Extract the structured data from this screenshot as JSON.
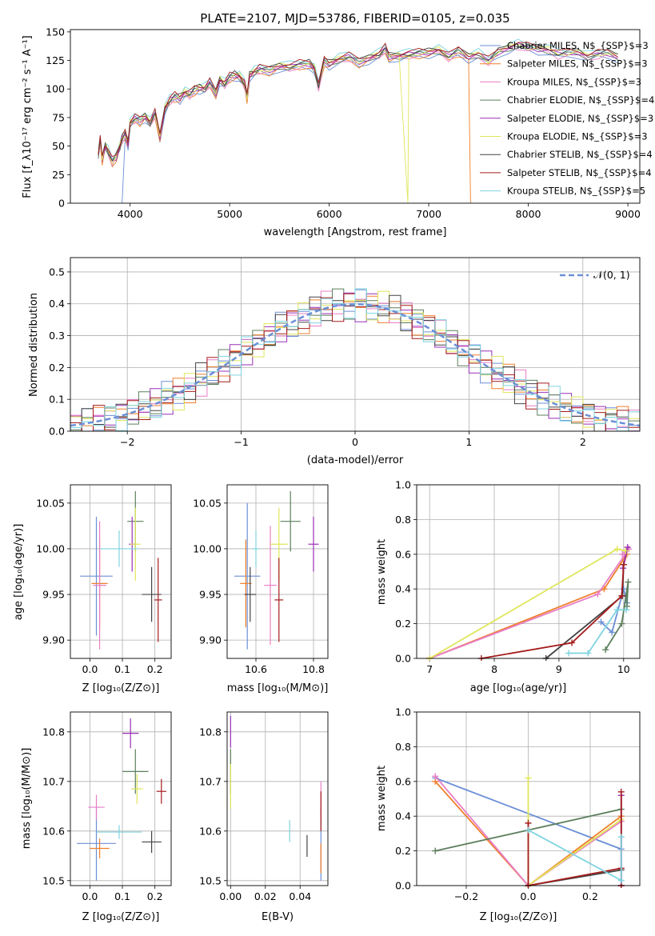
{
  "colors": [
    "#6b8fd6",
    "#ef7f2b",
    "#e87ec6",
    "#5c7f5c",
    "#9b2fb8",
    "#dfe65a",
    "#444444",
    "#a51c1c",
    "#7fd4e0"
  ],
  "chart_data": [
    {
      "id": "spectrum",
      "type": "line",
      "title": "PLATE=2107, MJD=53786, FIBERID=0105, z=0.035",
      "xlabel": "wavelength [Angstrom, rest frame]",
      "ylabel": "Flux [f_λ10⁻¹⁷ erg cm⁻² s⁻¹ A⁻¹]",
      "xlim": [
        3400,
        9120
      ],
      "ylim": [
        0,
        152
      ],
      "xticks": [
        4000,
        5000,
        6000,
        7000,
        8000,
        9000
      ],
      "yticks": [
        0,
        25,
        50,
        75,
        100,
        125,
        150
      ],
      "legend_position": "top-right",
      "x": [
        3680,
        3700,
        3720,
        3750,
        3780,
        3820,
        3860,
        3900,
        3920,
        3950,
        3980,
        4000,
        4050,
        4100,
        4150,
        4200,
        4250,
        4300,
        4350,
        4400,
        4450,
        4500,
        4550,
        4600,
        4650,
        4700,
        4750,
        4800,
        4861,
        4900,
        4950,
        5000,
        5050,
        5100,
        5150,
        5175,
        5200,
        5250,
        5300,
        5400,
        5500,
        5600,
        5700,
        5800,
        5850,
        5893,
        5950,
        6000,
        6100,
        6200,
        6300,
        6400,
        6500,
        6563,
        6600,
        6700,
        6800,
        6900,
        7000,
        7100,
        7200,
        7300,
        7400,
        7500,
        7600,
        7700,
        7800,
        7900,
        8000,
        8100,
        8200,
        8300,
        8400,
        8500,
        8600,
        8700,
        8800,
        8900
      ],
      "flux": [
        42,
        55,
        38,
        50,
        45,
        36,
        40,
        50,
        56,
        60,
        52,
        70,
        74,
        72,
        76,
        70,
        78,
        58,
        83,
        90,
        93,
        92,
        97,
        95,
        99,
        101,
        100,
        105,
        96,
        108,
        104,
        110,
        112,
        111,
        104,
        92,
        112,
        115,
        117,
        116,
        120,
        119,
        121,
        122,
        118,
        102,
        124,
        122,
        126,
        128,
        123,
        127,
        130,
        135,
        128,
        129,
        130,
        131,
        132,
        134,
        128,
        133,
        128,
        130,
        124,
        132,
        136,
        138,
        136,
        135,
        134,
        130,
        131,
        132,
        128,
        130,
        131,
        128
      ],
      "series": [
        {
          "name": "Chabrier MILES, N$_{SSP}$=3"
        },
        {
          "name": "Salpeter MILES, N$_{SSP}$=3"
        },
        {
          "name": "Kroupa MILES, N$_{SSP}$=3"
        },
        {
          "name": "Chabrier ELODIE, N$_{SSP}$=4"
        },
        {
          "name": "Salpeter ELODIE, N$_{SSP}$=3"
        },
        {
          "name": "Kroupa ELODIE, N$_{SSP}$=3"
        },
        {
          "name": "Chabrier STELIB, N$_{SSP}$=4"
        },
        {
          "name": "Salpeter STELIB, N$_{SSP}$=4"
        },
        {
          "name": "Kroupa STELIB, N$_{SSP}$=5"
        }
      ]
    },
    {
      "id": "residuals",
      "type": "histogram",
      "xlabel": "(data-model)/error",
      "ylabel": "Normed distribution",
      "xlim": [
        -2.5,
        2.5
      ],
      "ylim": [
        0,
        0.545
      ],
      "xticks": [
        -2,
        -1,
        0,
        1,
        2
      ],
      "yticks": [
        0.0,
        0.1,
        0.2,
        0.3,
        0.4,
        0.5
      ],
      "legend": "𝒩(0, 1)",
      "legend_position": "top-right"
    },
    {
      "id": "age_vs_Z",
      "type": "errorbar",
      "xlabel": "Z [log₁₀(Z/Z⊙)]",
      "ylabel": "age  [log₁₀(age/yr)]",
      "xlim": [
        -0.06,
        0.25
      ],
      "ylim": [
        9.88,
        10.07
      ],
      "xticks": [
        0.0,
        0.1,
        0.2
      ],
      "yticks": [
        9.9,
        9.95,
        10.0,
        10.05
      ],
      "points": [
        {
          "x": 0.02,
          "y": 9.97,
          "xerr": 0.05,
          "yerr": 0.065
        },
        {
          "x": 0.03,
          "y": 9.962,
          "xerr": 0.025,
          "yerr": 0.048
        },
        {
          "x": 0.03,
          "y": 9.96,
          "xerr": 0.02,
          "yerr": 0.07
        },
        {
          "x": 0.14,
          "y": 10.03,
          "xerr": 0.025,
          "yerr": 0.033
        },
        {
          "x": 0.13,
          "y": 10.005,
          "xerr": 0.01,
          "yerr": 0.03
        },
        {
          "x": 0.14,
          "y": 10.005,
          "xerr": 0.016,
          "yerr": 0.04
        },
        {
          "x": 0.19,
          "y": 9.95,
          "xerr": 0.03,
          "yerr": 0.03
        },
        {
          "x": 0.21,
          "y": 9.944,
          "xerr": 0.012,
          "yerr": 0.046
        },
        {
          "x": 0.09,
          "y": 10.0,
          "xerr": 0.06,
          "yerr": 0.02
        }
      ]
    },
    {
      "id": "age_vs_mass",
      "type": "errorbar",
      "xlabel": "mass [log₁₀(M/M⊙)]",
      "ylabel": "",
      "xlim": [
        10.5,
        10.85
      ],
      "ylim": [
        9.88,
        10.07
      ],
      "xticks": [
        10.6,
        10.8
      ],
      "yticks": [
        9.9,
        9.95,
        10.0,
        10.05
      ],
      "points": [
        {
          "x": 10.57,
          "y": 9.97,
          "xerr": 0.045,
          "yerr": 0.08
        },
        {
          "x": 10.565,
          "y": 9.962,
          "xerr": 0.02,
          "yerr": 0.048
        },
        {
          "x": 10.65,
          "y": 9.96,
          "xerr": 0.022,
          "yerr": 0.065
        },
        {
          "x": 10.72,
          "y": 10.03,
          "xerr": 0.035,
          "yerr": 0.033
        },
        {
          "x": 10.8,
          "y": 10.005,
          "xerr": 0.018,
          "yerr": 0.03
        },
        {
          "x": 10.68,
          "y": 10.005,
          "xerr": 0.03,
          "yerr": 0.04
        },
        {
          "x": 10.58,
          "y": 9.95,
          "xerr": 0.02,
          "yerr": 0.03
        },
        {
          "x": 10.68,
          "y": 9.944,
          "xerr": 0.015,
          "yerr": 0.046
        },
        {
          "x": 10.6,
          "y": 10.0,
          "xerr": 0.012,
          "yerr": 0.02
        }
      ]
    },
    {
      "id": "massweight_vs_age",
      "type": "line",
      "xlabel": "age  [log₁₀(age/yr)]",
      "ylabel": "mass weight",
      "xlim": [
        6.8,
        10.25
      ],
      "ylim": [
        0,
        1.0
      ],
      "xticks": [
        7,
        8,
        9,
        10
      ],
      "yticks": [
        0.0,
        0.2,
        0.4,
        0.6,
        0.8,
        1.0
      ],
      "series": [
        {
          "x": [
            9.65,
            9.82,
            10.0,
            10.05
          ],
          "y": [
            0.21,
            0.15,
            0.4,
            0.32
          ]
        },
        {
          "x": [
            7.0,
            9.7,
            10.05,
            10.0
          ],
          "y": [
            0.0,
            0.4,
            0.6,
            0.54
          ]
        },
        {
          "x": [
            7.0,
            9.6,
            10.08,
            9.98
          ],
          "y": [
            0.0,
            0.37,
            0.63,
            0.6
          ]
        },
        {
          "x": [
            9.72,
            9.97,
            10.07,
            10.05
          ],
          "y": [
            0.05,
            0.2,
            0.44,
            0.3
          ]
        },
        {
          "x": [
            9.99,
            10.06
          ],
          "y": [
            0.52,
            0.64
          ]
        },
        {
          "x": [
            7.0,
            9.9,
            10.03
          ],
          "y": [
            0.0,
            0.63,
            0.62
          ]
        },
        {
          "x": [
            8.8,
            9.98,
            10.0
          ],
          "y": [
            0.0,
            0.36,
            0.54
          ]
        },
        {
          "x": [
            7.8,
            9.2,
            9.97,
            10.0
          ],
          "y": [
            0.0,
            0.09,
            0.36,
            0.54
          ]
        },
        {
          "x": [
            9.15,
            9.45,
            9.9,
            10.04
          ],
          "y": [
            0.03,
            0.03,
            0.28,
            0.28
          ]
        }
      ]
    },
    {
      "id": "mass_vs_Z",
      "type": "errorbar",
      "xlabel": "Z [log₁₀(Z/Z⊙)]",
      "ylabel": "mass [log₁₀(M/M⊙)]",
      "xlim": [
        -0.06,
        0.25
      ],
      "ylim": [
        10.49,
        10.84
      ],
      "xticks": [
        0.0,
        0.1,
        0.2
      ],
      "yticks": [
        10.5,
        10.6,
        10.7,
        10.8
      ],
      "points": [
        {
          "x": 0.02,
          "y": 10.575,
          "xerr": 0.06,
          "yerr": 0.075
        },
        {
          "x": 0.03,
          "y": 10.565,
          "xerr": 0.03,
          "yerr": 0.02
        },
        {
          "x": 0.02,
          "y": 10.648,
          "xerr": 0.025,
          "yerr": 0.025
        },
        {
          "x": 0.14,
          "y": 10.72,
          "xerr": 0.04,
          "yerr": 0.045
        },
        {
          "x": 0.125,
          "y": 10.797,
          "xerr": 0.025,
          "yerr": 0.03
        },
        {
          "x": 0.145,
          "y": 10.685,
          "xerr": 0.018,
          "yerr": 0.03
        },
        {
          "x": 0.19,
          "y": 10.578,
          "xerr": 0.03,
          "yerr": 0.022
        },
        {
          "x": 0.22,
          "y": 10.68,
          "xerr": 0.015,
          "yerr": 0.025
        },
        {
          "x": 0.09,
          "y": 10.598,
          "xerr": 0.07,
          "yerr": 0.014
        }
      ]
    },
    {
      "id": "mass_vs_ebv",
      "type": "errorbar",
      "xlabel": "E(B-V)",
      "ylabel": "",
      "xlim": [
        -0.002,
        0.056
      ],
      "ylim": [
        10.49,
        10.84
      ],
      "xticks": [
        0.0,
        0.02,
        0.04
      ],
      "yticks": [
        10.5,
        10.6,
        10.7,
        10.8
      ],
      "points": [
        {
          "x": 0.052,
          "y": 10.575,
          "xerr": 0,
          "yerr": 0.075
        },
        {
          "x": 0.052,
          "y": 10.545,
          "xerr": 0,
          "yerr": 0.03
        },
        {
          "x": 0.052,
          "y": 10.66,
          "xerr": 0,
          "yerr": 0.04
        },
        {
          "x": 0.0,
          "y": 10.72,
          "xerr": 0,
          "yerr": 0.045
        },
        {
          "x": 0.0,
          "y": 10.8,
          "xerr": 0,
          "yerr": 0.032
        },
        {
          "x": 0.0,
          "y": 10.69,
          "xerr": 0,
          "yerr": 0.045
        },
        {
          "x": 0.044,
          "y": 10.57,
          "xerr": 0,
          "yerr": 0.022
        },
        {
          "x": 0.052,
          "y": 10.64,
          "xerr": 0,
          "yerr": 0.04
        },
        {
          "x": 0.034,
          "y": 10.6,
          "xerr": 0,
          "yerr": 0.022
        }
      ]
    },
    {
      "id": "massweight_vs_Z",
      "type": "line",
      "xlabel": "Z [log₁₀(Z/Z⊙)]",
      "ylabel": "mass weight",
      "xlim": [
        -0.36,
        0.36
      ],
      "ylim": [
        0,
        1.0
      ],
      "xticks": [
        -0.2,
        0.0,
        0.2
      ],
      "yticks": [
        0.0,
        0.2,
        0.4,
        0.6,
        0.8,
        1.0
      ],
      "series": [
        {
          "x": [
            -0.3,
            0.3
          ],
          "y": [
            0.62,
            0.21
          ]
        },
        {
          "x": [
            -0.3,
            0.0,
            0.3
          ],
          "y": [
            0.6,
            0.0,
            0.4
          ]
        },
        {
          "x": [
            -0.3,
            0.0,
            0.3
          ],
          "y": [
            0.63,
            0.0,
            0.37
          ]
        },
        {
          "x": [
            -0.3,
            0.3
          ],
          "y": [
            0.2,
            0.44
          ]
        },
        {
          "x": [
            0.3,
            0.3
          ],
          "y": [
            0.52,
            0.0
          ]
        },
        {
          "x": [
            0.0,
            0.0,
            0.3
          ],
          "y": [
            0.62,
            0.0,
            0.38
          ]
        },
        {
          "x": [
            0.0,
            0.3
          ],
          "y": [
            0.0,
            0.09
          ]
        },
        {
          "x": [
            0.0,
            0.0,
            0.3,
            0.3,
            0.3
          ],
          "y": [
            0.36,
            0.0,
            0.1,
            0.54,
            0.0
          ]
        },
        {
          "x": [
            0.0,
            0.3,
            0.3
          ],
          "y": [
            0.32,
            0.03,
            0.28
          ]
        }
      ]
    }
  ]
}
